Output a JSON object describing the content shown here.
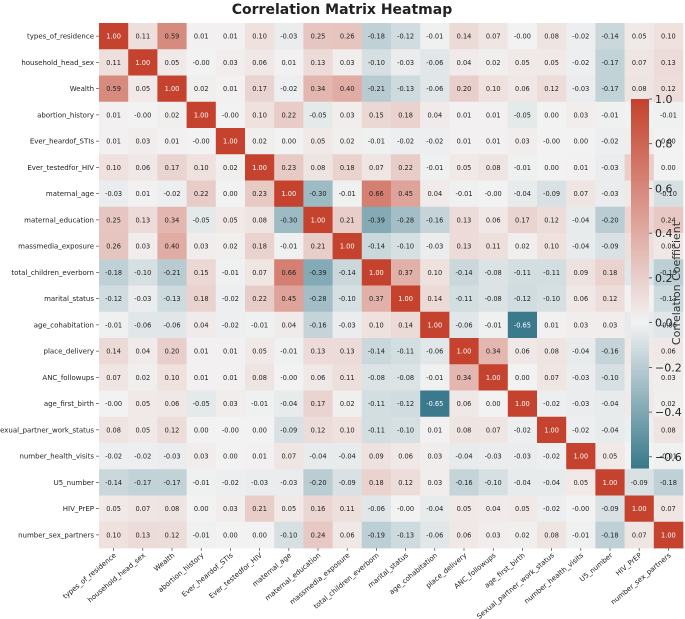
{
  "chart_data": {
    "type": "heatmap",
    "title": "Correlation Matrix Heatmap",
    "xlabel": "",
    "ylabel": "",
    "variables": [
      "types_of_residence",
      "household_head_sex",
      "Wealth",
      "abortion_history",
      "Ever_heardof_STIs",
      "Ever_testedfor_HIV",
      "maternal_age",
      "maternal_education",
      "massmedia_exposure",
      "total_children_everborn",
      "marital_status",
      "age_cohabitation",
      "place_delivery",
      "ANC_followups",
      "age_first_birth",
      "Sexual_partner_work_status",
      "number_health_visits",
      "U5_number",
      "HIV_PrEP",
      "number_sex_partners"
    ],
    "values": [
      [
        1.0,
        0.11,
        0.59,
        0.01,
        0.01,
        0.1,
        -0.03,
        0.25,
        0.26,
        -0.18,
        -0.12,
        -0.01,
        0.14,
        0.07,
        -0.0,
        0.08,
        -0.02,
        -0.14,
        0.05,
        0.1
      ],
      [
        0.11,
        1.0,
        0.05,
        -0.0,
        0.03,
        0.06,
        0.01,
        0.13,
        0.03,
        -0.1,
        -0.03,
        -0.06,
        0.04,
        0.02,
        0.05,
        0.05,
        -0.02,
        -0.17,
        0.07,
        0.13
      ],
      [
        0.59,
        0.05,
        1.0,
        0.02,
        0.01,
        0.17,
        -0.02,
        0.34,
        0.4,
        -0.21,
        -0.13,
        -0.06,
        0.2,
        0.1,
        0.06,
        0.12,
        -0.03,
        -0.17,
        0.08,
        0.12
      ],
      [
        0.01,
        -0.0,
        0.02,
        1.0,
        -0.0,
        0.1,
        0.22,
        -0.05,
        0.03,
        0.15,
        0.18,
        0.04,
        0.01,
        0.01,
        -0.05,
        0.0,
        0.03,
        -0.01,
        0.0,
        -0.01
      ],
      [
        0.01,
        0.03,
        0.01,
        -0.0,
        1.0,
        0.02,
        0.0,
        0.05,
        0.02,
        -0.01,
        -0.02,
        -0.02,
        0.01,
        0.01,
        0.03,
        -0.0,
        0.0,
        -0.02,
        0.03,
        0.0
      ],
      [
        0.1,
        0.06,
        0.17,
        0.1,
        0.02,
        1.0,
        0.23,
        0.08,
        0.18,
        0.07,
        0.22,
        -0.01,
        0.05,
        0.08,
        -0.01,
        0.0,
        0.01,
        -0.03,
        0.21,
        0.0
      ],
      [
        -0.03,
        0.01,
        -0.02,
        0.22,
        0.0,
        0.23,
        1.0,
        -0.3,
        -0.01,
        0.66,
        0.45,
        0.04,
        -0.01,
        -0.0,
        -0.04,
        -0.09,
        0.07,
        -0.03,
        0.05,
        -0.1
      ],
      [
        0.25,
        0.13,
        0.34,
        -0.05,
        0.05,
        0.08,
        -0.3,
        1.0,
        0.21,
        -0.39,
        -0.28,
        -0.16,
        0.13,
        0.06,
        0.17,
        0.12,
        -0.04,
        -0.2,
        0.16,
        0.24
      ],
      [
        0.26,
        0.03,
        0.4,
        0.03,
        0.02,
        0.18,
        -0.01,
        0.21,
        1.0,
        -0.14,
        -0.1,
        -0.03,
        0.13,
        0.11,
        0.02,
        0.1,
        -0.04,
        -0.09,
        0.11,
        0.06
      ],
      [
        -0.18,
        -0.1,
        -0.21,
        0.15,
        -0.01,
        0.07,
        0.66,
        -0.39,
        -0.14,
        1.0,
        0.37,
        0.1,
        -0.14,
        -0.08,
        -0.11,
        -0.11,
        0.09,
        0.18,
        -0.06,
        -0.19
      ],
      [
        -0.12,
        -0.03,
        -0.13,
        0.18,
        -0.02,
        0.22,
        0.45,
        -0.28,
        -0.1,
        0.37,
        1.0,
        0.14,
        -0.11,
        -0.08,
        -0.12,
        -0.1,
        0.06,
        0.12,
        -0.0,
        -0.13
      ],
      [
        -0.01,
        -0.06,
        -0.06,
        0.04,
        -0.02,
        -0.01,
        0.04,
        -0.16,
        -0.03,
        0.1,
        0.14,
        1.0,
        -0.06,
        -0.01,
        -0.65,
        0.01,
        0.03,
        0.03,
        -0.04,
        -0.06
      ],
      [
        0.14,
        0.04,
        0.2,
        0.01,
        0.01,
        0.05,
        -0.01,
        0.13,
        0.13,
        -0.14,
        -0.11,
        -0.06,
        1.0,
        0.34,
        0.06,
        0.08,
        -0.04,
        -0.16,
        0.05,
        0.06
      ],
      [
        0.07,
        0.02,
        0.1,
        0.01,
        0.01,
        0.08,
        -0.0,
        0.06,
        0.11,
        -0.08,
        -0.08,
        -0.01,
        0.34,
        1.0,
        0.0,
        0.07,
        -0.03,
        -0.1,
        0.04,
        0.03
      ],
      [
        -0.0,
        0.05,
        0.06,
        -0.05,
        0.03,
        -0.01,
        -0.04,
        0.17,
        0.02,
        -0.11,
        -0.12,
        -0.65,
        0.06,
        0.0,
        1.0,
        -0.02,
        -0.03,
        -0.04,
        0.05,
        0.02
      ],
      [
        0.08,
        0.05,
        0.12,
        0.0,
        -0.0,
        0.0,
        -0.09,
        0.12,
        0.1,
        -0.11,
        -0.1,
        0.01,
        0.08,
        0.07,
        -0.02,
        1.0,
        -0.02,
        -0.04,
        -0.02,
        0.08
      ],
      [
        -0.02,
        -0.02,
        -0.03,
        0.03,
        0.0,
        0.01,
        0.07,
        -0.04,
        -0.04,
        0.09,
        0.06,
        0.03,
        -0.04,
        -0.03,
        -0.03,
        -0.02,
        1.0,
        0.05,
        -0.0,
        -0.01
      ],
      [
        -0.14,
        -0.17,
        -0.17,
        -0.01,
        -0.02,
        -0.03,
        -0.03,
        -0.2,
        -0.09,
        0.18,
        0.12,
        0.03,
        -0.16,
        -0.1,
        -0.04,
        -0.04,
        0.05,
        1.0,
        -0.09,
        -0.18
      ],
      [
        0.05,
        0.07,
        0.08,
        0.0,
        0.03,
        0.21,
        0.05,
        0.16,
        0.11,
        -0.06,
        -0.0,
        -0.04,
        0.05,
        0.04,
        0.05,
        -0.02,
        -0.0,
        -0.09,
        1.0,
        0.07
      ],
      [
        0.1,
        0.13,
        0.12,
        -0.01,
        0.0,
        0.0,
        -0.1,
        0.24,
        0.06,
        -0.19,
        -0.13,
        -0.06,
        0.06,
        0.03,
        0.02,
        0.08,
        -0.01,
        -0.18,
        0.07,
        1.0
      ]
    ],
    "colorbar": {
      "label": "Correlation Coefficient",
      "range": [
        -0.65,
        1.0
      ],
      "ticks": [
        1.0,
        0.8,
        0.6,
        0.4,
        0.2,
        0.0,
        -0.2,
        -0.4,
        -0.6
      ],
      "tick_labels": [
        "1.0",
        "0.8",
        "0.6",
        "0.4",
        "0.2",
        "0.0",
        "−0.2",
        "−0.4",
        "−0.6"
      ]
    },
    "colors": {
      "negative": "#3a7a8c",
      "neutral": "#f2f2f2",
      "positive": "#c5432e"
    },
    "grid": false,
    "legend": "right"
  }
}
